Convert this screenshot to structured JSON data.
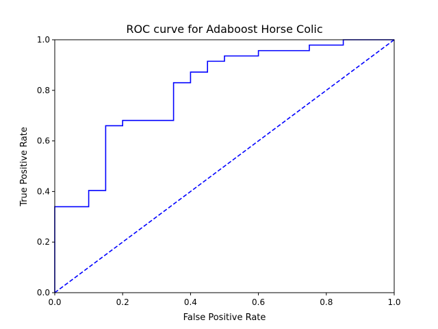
{
  "chart_data": {
    "type": "line",
    "title": "ROC curve for Adaboost Horse Colic",
    "xlabel": "False Positive Rate",
    "ylabel": "True Positive Rate",
    "xlim": [
      0,
      1
    ],
    "ylim": [
      0,
      1
    ],
    "xticks": [
      "0.0",
      "0.2",
      "0.4",
      "0.6",
      "0.8",
      "1.0"
    ],
    "yticks": [
      "0.0",
      "0.2",
      "0.4",
      "0.6",
      "0.8",
      "1.0"
    ],
    "grid": false,
    "series": [
      {
        "style": "solid",
        "color": "#0000ff",
        "points": [
          [
            0.0,
            0.0
          ],
          [
            0.0,
            0.34
          ],
          [
            0.1,
            0.34
          ],
          [
            0.1,
            0.404
          ],
          [
            0.15,
            0.404
          ],
          [
            0.15,
            0.66
          ],
          [
            0.2,
            0.66
          ],
          [
            0.2,
            0.681
          ],
          [
            0.35,
            0.681
          ],
          [
            0.35,
            0.83
          ],
          [
            0.4,
            0.83
          ],
          [
            0.4,
            0.872
          ],
          [
            0.45,
            0.872
          ],
          [
            0.45,
            0.915
          ],
          [
            0.5,
            0.915
          ],
          [
            0.5,
            0.936
          ],
          [
            0.6,
            0.936
          ],
          [
            0.6,
            0.957
          ],
          [
            0.75,
            0.957
          ],
          [
            0.75,
            0.979
          ],
          [
            0.85,
            0.979
          ],
          [
            0.85,
            1.0
          ],
          [
            1.0,
            1.0
          ]
        ]
      },
      {
        "style": "dashed",
        "color": "#0000ff",
        "points": [
          [
            0.0,
            0.0
          ],
          [
            1.0,
            1.0
          ]
        ]
      }
    ]
  }
}
